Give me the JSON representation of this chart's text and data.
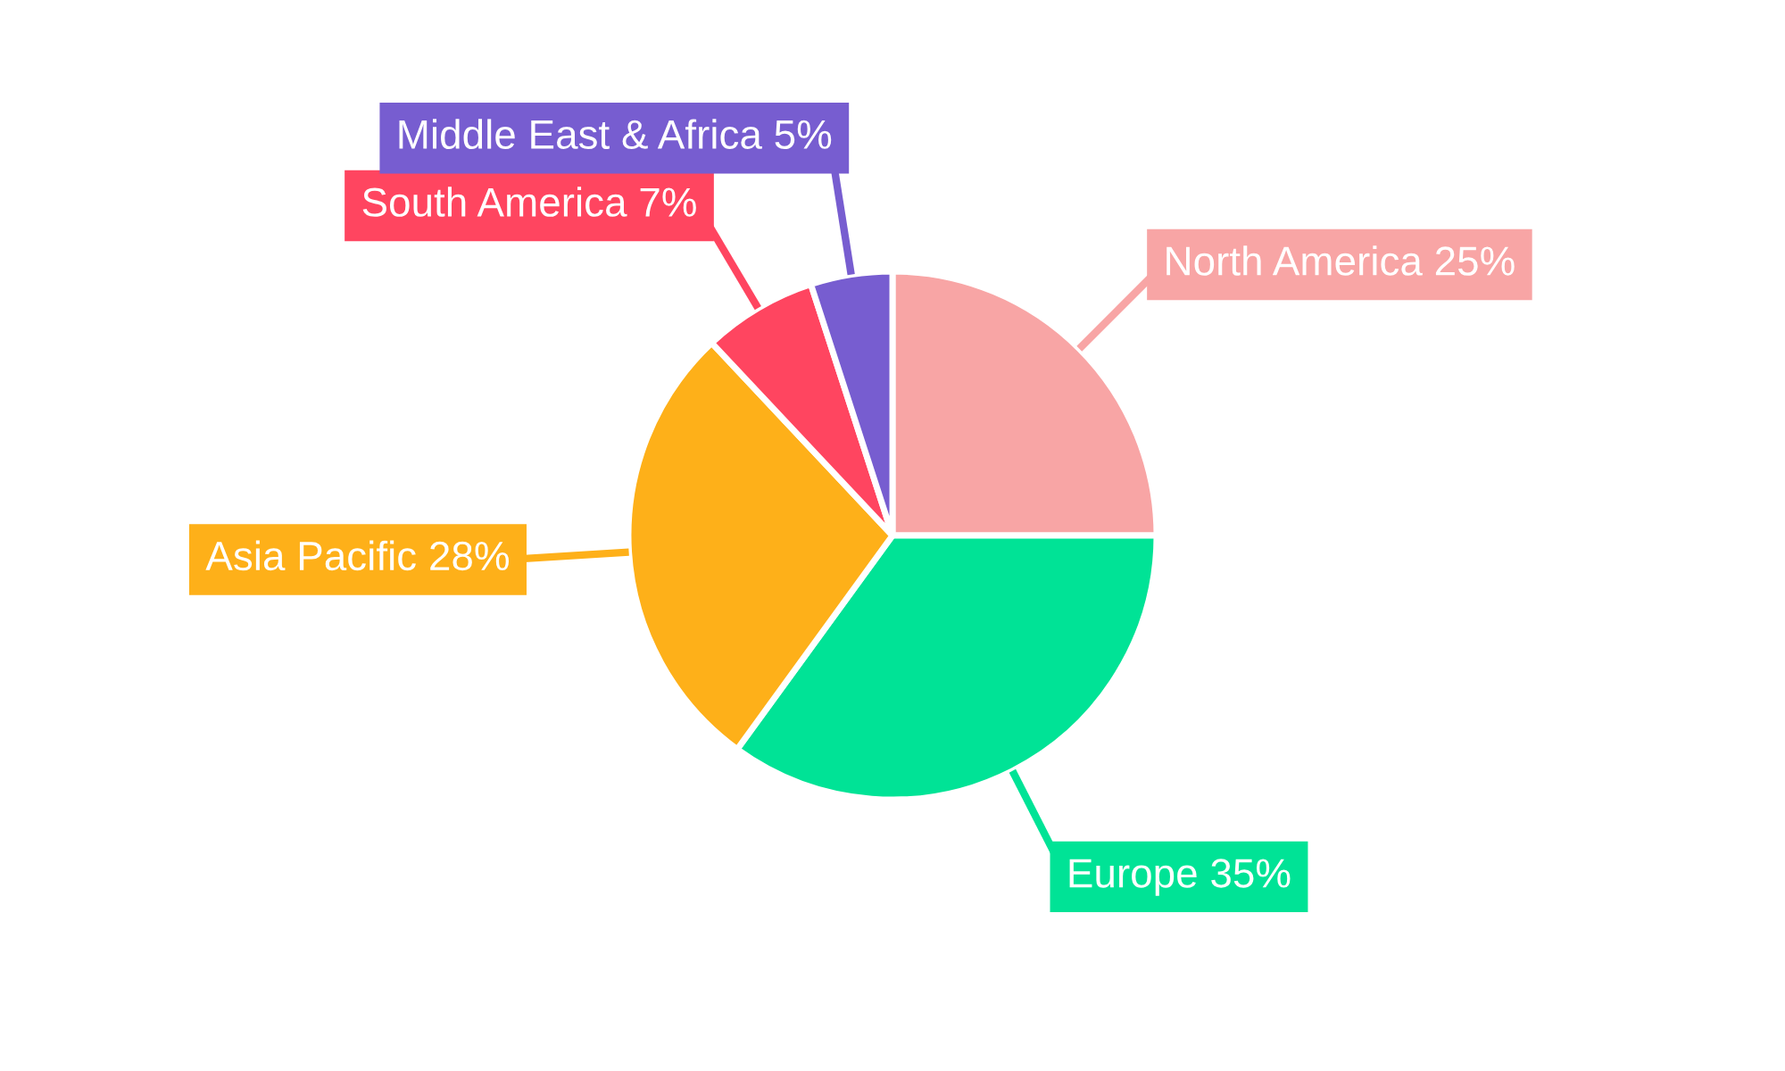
{
  "chart_data": {
    "type": "pie",
    "categories": [
      "North America",
      "Europe",
      "Asia Pacific",
      "South America",
      "Middle East & Africa"
    ],
    "values": [
      25,
      35,
      28,
      7,
      5
    ],
    "value_labels": [
      "25%",
      "35%",
      "28%",
      "7%",
      "5%"
    ],
    "colors": [
      "#f8a5a5",
      "#00e396",
      "#feb019",
      "#ff4560",
      "#775dd0"
    ],
    "legend": false
  }
}
